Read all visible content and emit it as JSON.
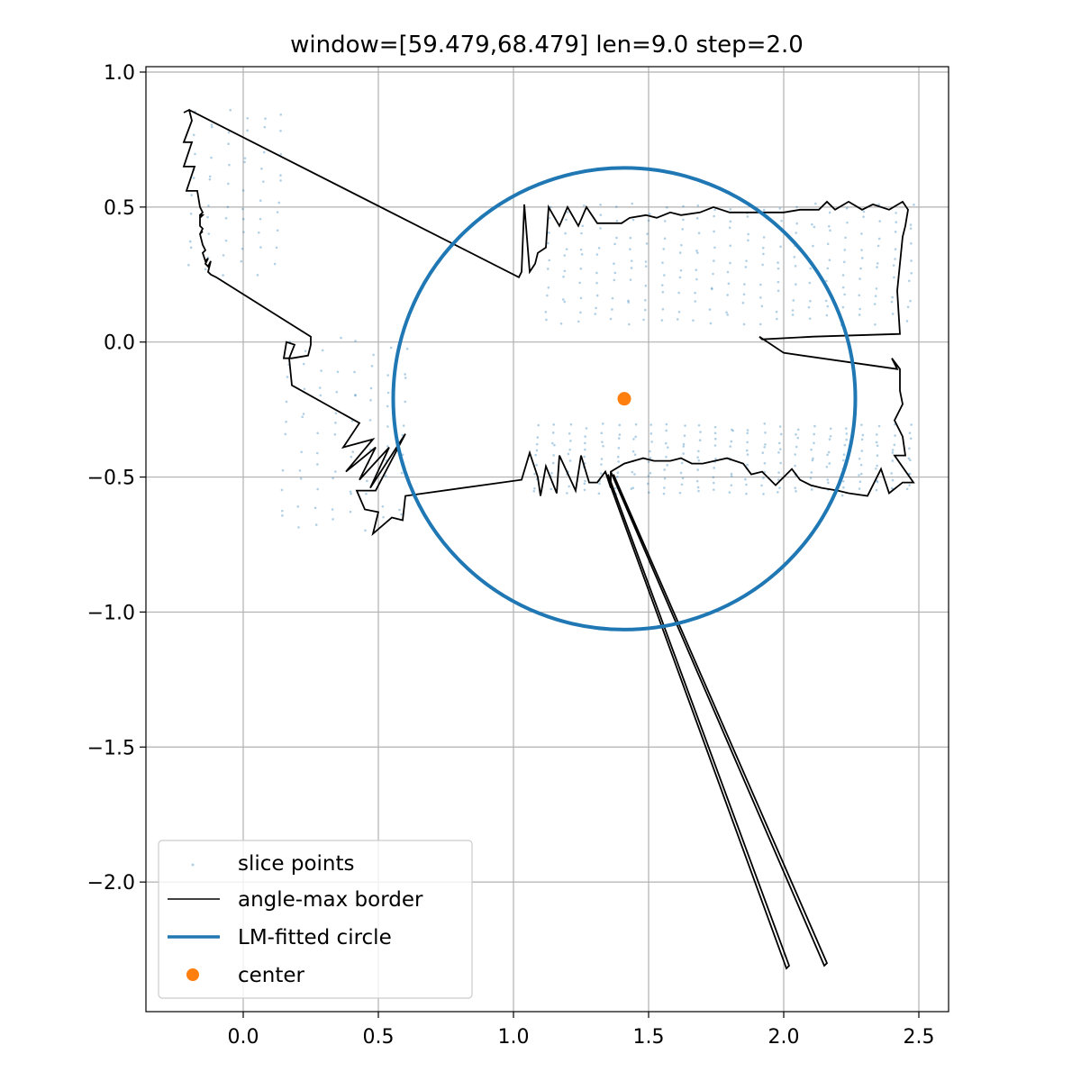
{
  "chart_data": {
    "type": "scatter",
    "title": "window=[59.479,68.479] len=9.0  step=2.0",
    "xlabel": "",
    "ylabel": "",
    "xlim": [
      -0.36,
      2.61
    ],
    "ylim": [
      -2.48,
      1.02
    ],
    "grid": true,
    "legend_position": "lower-left",
    "x_ticks": [
      0.0,
      0.5,
      1.0,
      1.5,
      2.0,
      2.5
    ],
    "y_ticks": [
      1.0,
      0.5,
      0.0,
      -0.5,
      -1.0,
      -1.5,
      -2.0
    ],
    "x_tick_labels": [
      "0.0",
      "0.5",
      "1.0",
      "1.5",
      "2.0",
      "2.5"
    ],
    "y_tick_labels": [
      "1.0",
      "0.5",
      "0.0",
      "−0.5",
      "−1.0",
      "−1.5",
      "−2.0"
    ],
    "colors": {
      "points": "#1f77b4",
      "border": "#000000",
      "circle": "#1f77b4",
      "center": "#ff7f0e",
      "grid": "#b0b0b0"
    },
    "legend": [
      {
        "label": "slice points",
        "kind": "points"
      },
      {
        "label": "angle-max border",
        "kind": "border"
      },
      {
        "label": "LM-fitted circle",
        "kind": "circle"
      },
      {
        "label": "center",
        "kind": "center"
      }
    ],
    "circle": {
      "cx": 1.41,
      "cy": -0.21,
      "r": 0.855
    },
    "center": {
      "x": 1.41,
      "y": -0.21
    },
    "border": [
      [
        -0.22,
        0.85
      ],
      [
        -0.2,
        0.86
      ],
      [
        -0.19,
        0.82
      ],
      [
        -0.22,
        0.74
      ],
      [
        -0.19,
        0.74
      ],
      [
        -0.22,
        0.65
      ],
      [
        -0.18,
        0.65
      ],
      [
        -0.21,
        0.56
      ],
      [
        -0.17,
        0.56
      ],
      [
        -0.16,
        0.5
      ],
      [
        -0.15,
        0.48
      ],
      [
        -0.16,
        0.47
      ],
      [
        -0.16,
        0.46
      ],
      [
        -0.15,
        0.47
      ],
      [
        -0.16,
        0.47
      ],
      [
        -0.16,
        0.46
      ],
      [
        -0.16,
        0.43
      ],
      [
        -0.15,
        0.42
      ],
      [
        -0.16,
        0.4
      ],
      [
        -0.15,
        0.41
      ],
      [
        -0.16,
        0.4
      ],
      [
        -0.15,
        0.36
      ],
      [
        -0.14,
        0.34
      ],
      [
        -0.15,
        0.33
      ],
      [
        -0.14,
        0.3
      ],
      [
        -0.13,
        0.31
      ],
      [
        -0.14,
        0.29
      ],
      [
        -0.13,
        0.28
      ],
      [
        -0.12,
        0.3
      ],
      [
        -0.13,
        0.26
      ],
      [
        -0.12,
        0.25
      ],
      [
        -0.1,
        0.24
      ],
      [
        0.25,
        0.02
      ],
      [
        0.25,
        -0.01
      ],
      [
        0.24,
        -0.05
      ],
      [
        0.18,
        -0.06
      ],
      [
        0.15,
        -0.06
      ],
      [
        0.16,
        0.0
      ],
      [
        0.19,
        -0.01
      ],
      [
        0.17,
        -0.06
      ],
      [
        0.18,
        -0.16
      ],
      [
        0.43,
        -0.3
      ],
      [
        0.37,
        -0.39
      ],
      [
        0.48,
        -0.36
      ],
      [
        0.38,
        -0.48
      ],
      [
        0.49,
        -0.39
      ],
      [
        0.43,
        -0.51
      ],
      [
        0.54,
        -0.39
      ],
      [
        0.47,
        -0.54
      ],
      [
        0.6,
        -0.34
      ],
      [
        0.49,
        -0.55
      ],
      [
        0.42,
        -0.55
      ],
      [
        0.45,
        -0.62
      ],
      [
        0.5,
        -0.63
      ],
      [
        0.48,
        -0.71
      ],
      [
        0.55,
        -0.65
      ],
      [
        0.59,
        -0.66
      ],
      [
        0.6,
        -0.57
      ],
      [
        1.03,
        -0.51
      ],
      [
        1.06,
        -0.41
      ],
      [
        1.09,
        -0.5
      ],
      [
        1.1,
        -0.57
      ],
      [
        1.12,
        -0.46
      ],
      [
        1.16,
        -0.56
      ],
      [
        1.17,
        -0.42
      ],
      [
        1.23,
        -0.55
      ],
      [
        1.25,
        -0.42
      ],
      [
        1.28,
        -0.52
      ],
      [
        1.31,
        -0.52
      ],
      [
        1.34,
        -0.48
      ],
      [
        1.36,
        -0.54
      ],
      [
        1.36,
        -0.48
      ],
      [
        1.41,
        -0.45
      ],
      [
        1.48,
        -0.43
      ],
      [
        1.52,
        -0.44
      ],
      [
        1.58,
        -0.44
      ],
      [
        1.62,
        -0.43
      ],
      [
        1.66,
        -0.45
      ],
      [
        1.7,
        -0.45
      ],
      [
        1.79,
        -0.43
      ],
      [
        1.85,
        -0.45
      ],
      [
        1.88,
        -0.49
      ],
      [
        1.92,
        -0.48
      ],
      [
        1.97,
        -0.53
      ],
      [
        2.03,
        -0.47
      ],
      [
        2.06,
        -0.51
      ],
      [
        2.1,
        -0.53
      ],
      [
        2.14,
        -0.54
      ],
      [
        2.2,
        -0.55
      ],
      [
        2.24,
        -0.56
      ],
      [
        2.31,
        -0.57
      ],
      [
        2.36,
        -0.47
      ],
      [
        2.39,
        -0.56
      ],
      [
        2.44,
        -0.52
      ],
      [
        2.48,
        -0.52
      ],
      [
        2.41,
        -0.42
      ],
      [
        2.45,
        -0.42
      ],
      [
        2.44,
        -0.35
      ],
      [
        2.41,
        -0.29
      ],
      [
        2.44,
        -0.23
      ],
      [
        2.43,
        -0.18
      ],
      [
        2.43,
        -0.1
      ],
      [
        2.4,
        -0.06
      ],
      [
        2.42,
        -0.1
      ],
      [
        2.0,
        -0.04
      ],
      [
        1.91,
        0.02
      ],
      [
        1.92,
        0.01
      ],
      [
        2.11,
        0.02
      ],
      [
        2.43,
        0.03
      ],
      [
        2.42,
        0.19
      ],
      [
        2.44,
        0.39
      ],
      [
        2.45,
        0.43
      ],
      [
        2.46,
        0.49
      ],
      [
        2.44,
        0.52
      ],
      [
        2.39,
        0.49
      ],
      [
        2.33,
        0.51
      ],
      [
        2.29,
        0.49
      ],
      [
        2.24,
        0.52
      ],
      [
        2.19,
        0.49
      ],
      [
        2.16,
        0.52
      ],
      [
        2.13,
        0.49
      ],
      [
        2.06,
        0.49
      ],
      [
        2.0,
        0.48
      ],
      [
        1.92,
        0.48
      ],
      [
        1.85,
        0.48
      ],
      [
        1.8,
        0.48
      ],
      [
        1.74,
        0.5
      ],
      [
        1.69,
        0.48
      ],
      [
        1.62,
        0.47
      ],
      [
        1.58,
        0.48
      ],
      [
        1.53,
        0.46
      ],
      [
        1.49,
        0.47
      ],
      [
        1.43,
        0.46
      ],
      [
        1.4,
        0.44
      ],
      [
        1.37,
        0.44
      ],
      [
        1.31,
        0.44
      ],
      [
        1.27,
        0.5
      ],
      [
        1.24,
        0.43
      ],
      [
        1.2,
        0.5
      ],
      [
        1.17,
        0.43
      ],
      [
        1.13,
        0.5
      ],
      [
        1.12,
        0.35
      ],
      [
        1.09,
        0.33
      ],
      [
        1.08,
        0.29
      ],
      [
        1.06,
        0.26
      ],
      [
        1.04,
        0.51
      ],
      [
        1.03,
        0.26
      ],
      [
        1.02,
        0.24
      ],
      [
        -0.2,
        0.86
      ]
    ],
    "rays": [
      [
        [
          1.34,
          -0.48
        ],
        [
          2.01,
          -2.32
        ],
        [
          2.02,
          -2.31
        ],
        [
          1.35,
          -0.49
        ]
      ],
      [
        [
          1.36,
          -0.48
        ],
        [
          2.15,
          -2.31
        ],
        [
          2.16,
          -2.3
        ],
        [
          1.37,
          -0.49
        ]
      ]
    ],
    "point_bands": [
      {
        "x0": 1.12,
        "x1": 2.46,
        "y0": 0.06,
        "y1": 0.52
      },
      {
        "x0": 1.08,
        "x1": 2.46,
        "y0": -0.57,
        "y1": -0.3
      },
      {
        "x0": -0.2,
        "x1": 0.12,
        "y0": 0.24,
        "y1": 0.86
      },
      {
        "x0": 0.14,
        "x1": 0.58,
        "y0": -0.7,
        "y1": 0.02
      }
    ]
  }
}
